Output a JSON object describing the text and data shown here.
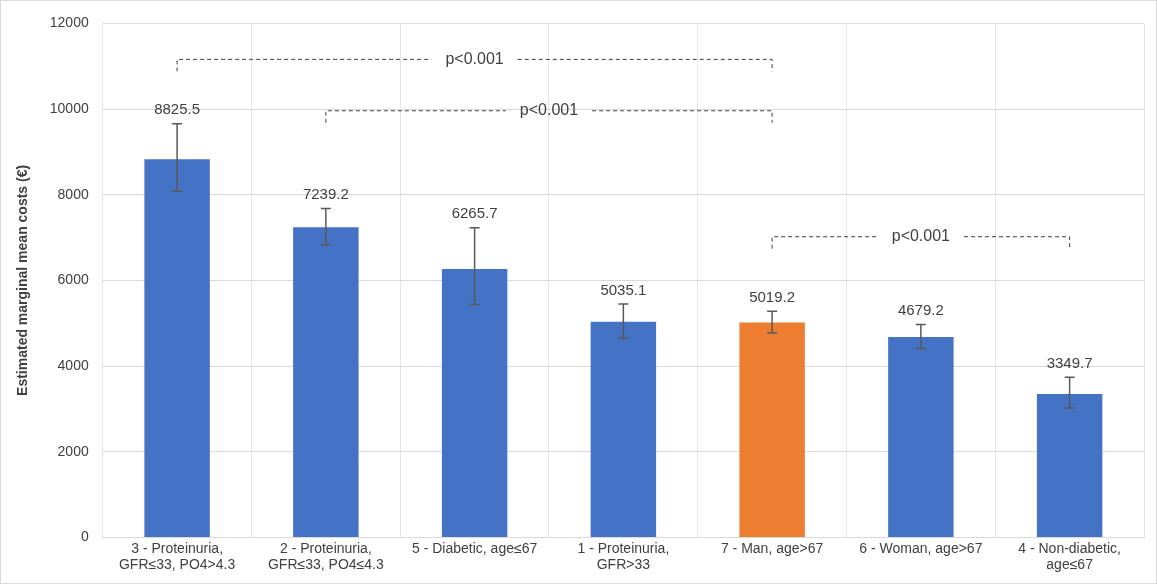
{
  "chart_data": {
    "type": "bar",
    "ylabel": "Estimated marginal mean costs (€)",
    "categories": [
      "3 - Proteinuria, GFR≤33, PO4>4.3",
      "2 - Proteinuria, GFR≤33, PO4≤4.3",
      "5 - Diabetic, age≤67",
      "1 - Proteinuria, GFR>33",
      "7 - Man, age>67",
      "6 - Woman, age>67",
      "4 - Non-diabetic, age≤67"
    ],
    "values": [
      8825.5,
      7239.2,
      6265.7,
      5035.1,
      5019.2,
      4679.2,
      3349.7
    ],
    "colors": [
      "#4472c4",
      "#4472c4",
      "#4472c4",
      "#4472c4",
      "#ed7d31",
      "#4472c4",
      "#4472c4"
    ],
    "errors": [
      [
        8080,
        9660
      ],
      [
        6830,
        7680
      ],
      [
        5440,
        7230
      ],
      [
        4650,
        5450
      ],
      [
        4770,
        5280
      ],
      [
        4410,
        4970
      ],
      [
        3020,
        3740
      ]
    ],
    "data_labels": true,
    "annotations": [
      "p<0.001",
      "p<0.001",
      "p<0.001"
    ],
    "ylim": [
      0,
      12000
    ],
    "yticks": [
      0,
      2000,
      4000,
      6000,
      8000,
      10000,
      12000
    ],
    "grid": true,
    "legend": false
  }
}
